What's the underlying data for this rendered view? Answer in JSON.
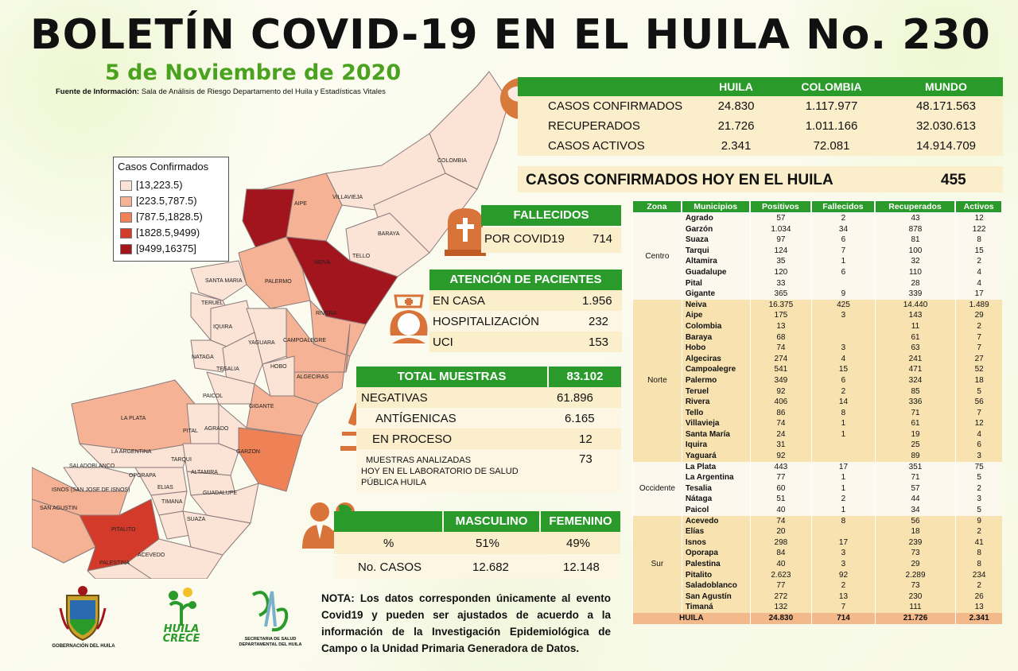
{
  "header": {
    "title": "BOLETÍN COVID-19 EN EL HUILA No. 230",
    "date": "5 de Noviembre de 2020",
    "source_label": "Fuente de Información:",
    "source_text": "Sala de Análisis de Riesgo Departamento del Huila y Estadísticas Vitales"
  },
  "summary": {
    "columns": [
      "HUILA",
      "COLOMBIA",
      "MUNDO"
    ],
    "rows": [
      {
        "label": "CASOS CONFIRMADOS",
        "values": [
          "24.830",
          "1.117.977",
          "48.171.563"
        ]
      },
      {
        "label": "RECUPERADOS",
        "values": [
          "21.726",
          "1.011.166",
          "32.030.613"
        ]
      },
      {
        "label": "CASOS ACTIVOS",
        "values": [
          "2.341",
          "72.081",
          "14.914.709"
        ]
      }
    ]
  },
  "today": {
    "label": "CASOS CONFIRMADOS  HOY EN EL HUILA",
    "value": "455"
  },
  "fallecidos": {
    "title": "FALLECIDOS",
    "label": "POR COVID19",
    "value": "714"
  },
  "atencion": {
    "title": "ATENCIÓN DE PACIENTES",
    "rows": [
      {
        "label": "EN CASA",
        "value": "1.956"
      },
      {
        "label": "HOSPITALIZACIÓN",
        "value": "232"
      },
      {
        "label": "UCI",
        "value": "153"
      }
    ]
  },
  "muestras": {
    "title": "TOTAL MUESTRAS",
    "total": "83.102",
    "rows": [
      {
        "label": "NEGATIVAS",
        "value": "61.896"
      },
      {
        "label": "ANTÍGENICAS",
        "value": "6.165"
      },
      {
        "label": "EN PROCESO",
        "value": "12"
      }
    ],
    "lab_label_1": "MUESTRAS ANALIZADAS",
    "lab_label_2": "HOY EN EL LABORATORIO DE SALUD",
    "lab_label_3": "PÚBLICA HUILA",
    "lab_value": "73"
  },
  "sexo": {
    "columns": [
      "MASCULINO",
      "FEMENINO"
    ],
    "pct_label": "%",
    "pct": [
      "51%",
      "49%"
    ],
    "cases_label": "No. CASOS",
    "cases": [
      "12.682",
      "12.148"
    ]
  },
  "legend": {
    "title": "Casos Confirmados",
    "items": [
      {
        "label": "[13,223.5)",
        "color": "#fbe3d6"
      },
      {
        "label": "[223.5,787.5)",
        "color": "#f5b294"
      },
      {
        "label": "[787.5,1828.5)",
        "color": "#ef8156"
      },
      {
        "label": "[1828.5,9499)",
        "color": "#d43a2a"
      },
      {
        "label": "[9499,16375]",
        "color": "#a3151c"
      }
    ]
  },
  "map_labels": [
    "COLOMBIA",
    "VILLAVIEJA",
    "AIPE",
    "BARAYA",
    "TELLO",
    "NEIVA",
    "SANTA MARIA",
    "PALERMO",
    "TERUEL",
    "RIVERA",
    "IQUIRA",
    "YAGUARA",
    "CAMPOALEGRE",
    "NATAGA",
    "TESALIA",
    "HOBO",
    "ALGECIRAS",
    "PAICOL",
    "LA PLATA",
    "GIGANTE",
    "PITAL",
    "AGRADO",
    "LA ARGENTINA",
    "GARZON",
    "SALADOBLANCO",
    "TARQUI",
    "OPORAPA",
    "ALTAMIRA",
    "ISNOS (SAN JOSE DE ISNOS)",
    "ELIAS",
    "TIMANA",
    "GUADALUPE",
    "SAN AGUSTIN",
    "SUAZA",
    "PITALITO",
    "ACEVEDO",
    "PALESTINA"
  ],
  "municipios": {
    "headers": [
      "Zona",
      "Municipios",
      "Positivos",
      "Fallecidos",
      "Recuperados",
      "Activos"
    ],
    "zones": [
      {
        "zone": "Centro",
        "rows": [
          [
            "Agrado",
            "57",
            "2",
            "43",
            "12"
          ],
          [
            "Garzón",
            "1.034",
            "34",
            "878",
            "122"
          ],
          [
            "Suaza",
            "97",
            "6",
            "81",
            "8"
          ],
          [
            "Tarqui",
            "124",
            "7",
            "100",
            "15"
          ],
          [
            "Altamira",
            "35",
            "1",
            "32",
            "2"
          ],
          [
            "Guadalupe",
            "120",
            "6",
            "110",
            "4"
          ],
          [
            "Pital",
            "33",
            "",
            "28",
            "4"
          ],
          [
            "Gigante",
            "365",
            "9",
            "339",
            "17"
          ]
        ]
      },
      {
        "zone": "Norte",
        "rows": [
          [
            "Neiva",
            "16.375",
            "425",
            "14.440",
            "1.489"
          ],
          [
            "Aipe",
            "175",
            "3",
            "143",
            "29"
          ],
          [
            "Colombia",
            "13",
            "",
            "11",
            "2"
          ],
          [
            "Baraya",
            "68",
            "",
            "61",
            "7"
          ],
          [
            "Hobo",
            "74",
            "3",
            "63",
            "7"
          ],
          [
            "Algeciras",
            "274",
            "4",
            "241",
            "27"
          ],
          [
            "Campoalegre",
            "541",
            "15",
            "471",
            "52"
          ],
          [
            "Palermo",
            "349",
            "6",
            "324",
            "18"
          ],
          [
            "Teruel",
            "92",
            "2",
            "85",
            "5"
          ],
          [
            "Rivera",
            "406",
            "14",
            "336",
            "56"
          ],
          [
            "Tello",
            "86",
            "8",
            "71",
            "7"
          ],
          [
            "Villavieja",
            "74",
            "1",
            "61",
            "12"
          ],
          [
            "Santa María",
            "24",
            "1",
            "19",
            "4"
          ],
          [
            "Iquira",
            "31",
            "",
            "25",
            "6"
          ],
          [
            "Yaguará",
            "92",
            "",
            "89",
            "3"
          ]
        ]
      },
      {
        "zone": "Occidente",
        "rows": [
          [
            "La Plata",
            "443",
            "17",
            "351",
            "75"
          ],
          [
            "La Argentina",
            "77",
            "1",
            "71",
            "5"
          ],
          [
            "Tesalia",
            "60",
            "1",
            "57",
            "2"
          ],
          [
            "Nátaga",
            "51",
            "2",
            "44",
            "3"
          ],
          [
            "Paicol",
            "40",
            "1",
            "34",
            "5"
          ]
        ]
      },
      {
        "zone": "Sur",
        "rows": [
          [
            "Acevedo",
            "74",
            "8",
            "56",
            "9"
          ],
          [
            "Elías",
            "20",
            "",
            "18",
            "2"
          ],
          [
            "Isnos",
            "298",
            "17",
            "239",
            "41"
          ],
          [
            "Oporapa",
            "84",
            "3",
            "73",
            "8"
          ],
          [
            "Palestina",
            "40",
            "3",
            "29",
            "8"
          ],
          [
            "Pitalito",
            "2.623",
            "92",
            "2.289",
            "234"
          ],
          [
            "Saladoblanco",
            "77",
            "2",
            "73",
            "2"
          ],
          [
            "San Agustín",
            "272",
            "13",
            "230",
            "26"
          ],
          [
            "Timaná",
            "132",
            "7",
            "111",
            "13"
          ]
        ]
      }
    ],
    "total": [
      "HUILA",
      "24.830",
      "714",
      "21.726",
      "2.341"
    ]
  },
  "nota": "NOTA: Los datos corresponden únicamente al evento Covid19 y pueden ser ajustados de acuerdo a la información de la Investigación Epidemiológica de Campo o la Unidad Primaria Generadora de Datos.",
  "logos": {
    "gobernacion": "GOBERNACIÓN DEL HUILA",
    "huila_crece_1": "HUILA",
    "huila_crece_2": "CRECE",
    "secretaria_1": "SECRETARIA DE SALUD",
    "secretaria_2": "DEPARTAMENTAL DEL HUILA"
  }
}
